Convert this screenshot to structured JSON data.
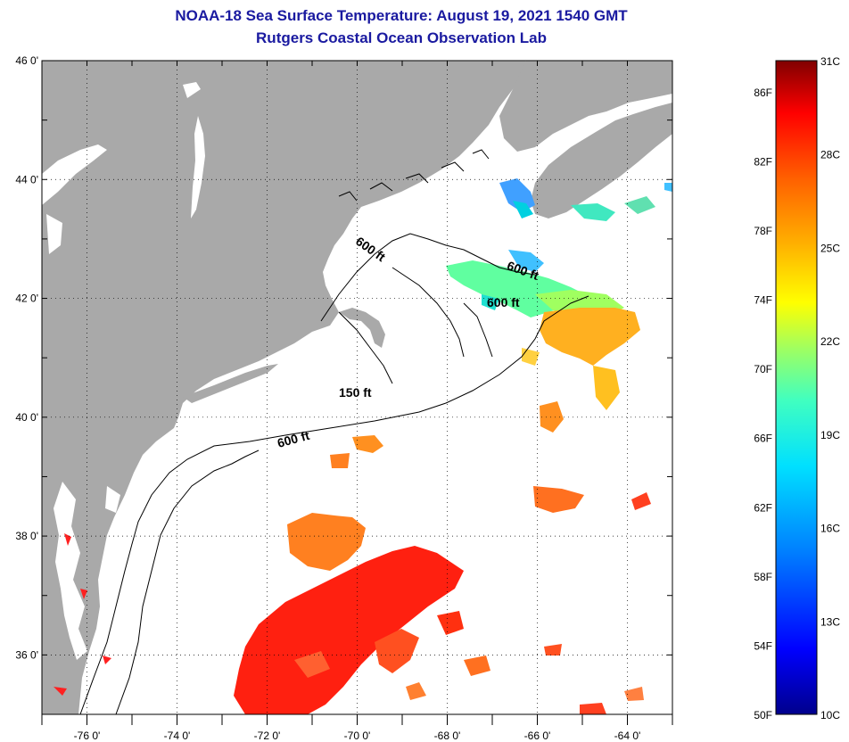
{
  "header": {
    "title": "NOAA-18 Sea Surface Temperature:  August 19, 2021 1540 GMT",
    "subtitle": "Rutgers Coastal Ocean Observation Lab"
  },
  "axes": {
    "lat_labels": [
      "46 0'",
      "44 0'",
      "42 0'",
      "40 0'",
      "38 0'",
      "36 0'"
    ],
    "lon_labels": [
      "-76 0'",
      "-74 0'",
      "-72 0'",
      "-70 0'",
      "-68 0'",
      "-66 0'",
      "-64 0'"
    ],
    "lat_range": [
      35,
      46
    ],
    "lon_range": [
      -77,
      -63
    ],
    "grid": "dotted"
  },
  "contours": {
    "labels": [
      "600 ft",
      "600 ft",
      "600 ft",
      "150 ft",
      "600 ft"
    ]
  },
  "colorbar": {
    "fahrenheit": [
      "86F",
      "82F",
      "78F",
      "74F",
      "70F",
      "66F",
      "62F",
      "58F",
      "54F",
      "50F"
    ],
    "celsius": [
      "31C",
      "28C",
      "25C",
      "22C",
      "19C",
      "16C",
      "13C",
      "10C"
    ],
    "range_c": [
      10,
      31
    ],
    "colors": [
      "#00008c",
      "#0000ff",
      "#0080ff",
      "#00e0ff",
      "#40ffc0",
      "#a0ff60",
      "#ffff00",
      "#ffb000",
      "#ff6000",
      "#ff0000",
      "#800000"
    ]
  },
  "colors": {
    "land": "#a9a9a9",
    "title": "#1a1aa0"
  }
}
